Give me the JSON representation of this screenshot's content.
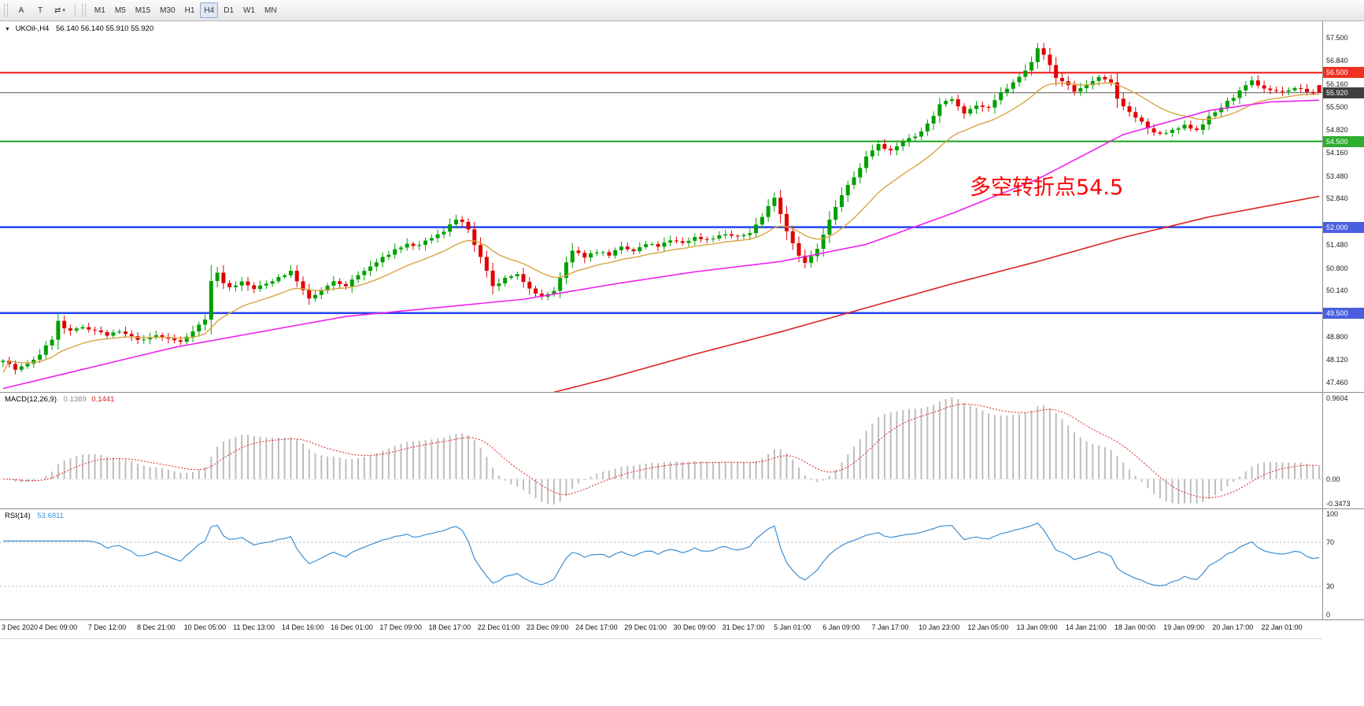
{
  "toolbar": {
    "left_buttons": [
      {
        "id": "annotate-arrow",
        "label": "A"
      },
      {
        "id": "text-label",
        "label": "T"
      }
    ],
    "cycle_button": {
      "label": "⇄",
      "caret": "▾"
    },
    "timeframes": [
      "M1",
      "M5",
      "M15",
      "M30",
      "H1",
      "H4",
      "D1",
      "W1",
      "MN"
    ],
    "selected_timeframe": "H4"
  },
  "chart": {
    "symbol_dropdown_icon": "▼",
    "title": "UKOil-,H4",
    "ohlc": "56.140 56.140 55.910 55.920",
    "annotation": {
      "text": "多空转折点54.5",
      "color": "#ff0000"
    }
  },
  "chart_data": {
    "type": "candlestick",
    "symbol": "UKOil-",
    "timeframe": "H4",
    "title": "UKOil-,H4 56.140 56.140 55.910 55.920",
    "ohlc_current": {
      "open": 56.14,
      "high": 56.14,
      "low": 55.91,
      "close": 55.92
    },
    "bars": 216,
    "price_range": [
      47.2,
      58.0
    ],
    "candle_colors": {
      "up": "#00a000",
      "down": "#e00000"
    },
    "price_path": [
      [
        0,
        48.15
      ],
      [
        2,
        47.85
      ],
      [
        4,
        48.0
      ],
      [
        6,
        48.3
      ],
      [
        8,
        48.75
      ],
      [
        9,
        49.25
      ],
      [
        10,
        49.05
      ],
      [
        11,
        48.95
      ],
      [
        13,
        49.1
      ],
      [
        15,
        49.0
      ],
      [
        17,
        48.85
      ],
      [
        19,
        48.95
      ],
      [
        21,
        48.8
      ],
      [
        23,
        48.7
      ],
      [
        25,
        48.85
      ],
      [
        27,
        48.75
      ],
      [
        29,
        48.65
      ],
      [
        31,
        49.0
      ],
      [
        33,
        49.3
      ],
      [
        34,
        50.45
      ],
      [
        35,
        50.65
      ],
      [
        36,
        50.4
      ],
      [
        37,
        50.25
      ],
      [
        39,
        50.4
      ],
      [
        41,
        50.2
      ],
      [
        43,
        50.35
      ],
      [
        45,
        50.55
      ],
      [
        47,
        50.7
      ],
      [
        48,
        50.45
      ],
      [
        49,
        50.15
      ],
      [
        50,
        49.9
      ],
      [
        52,
        50.15
      ],
      [
        54,
        50.4
      ],
      [
        56,
        50.3
      ],
      [
        58,
        50.6
      ],
      [
        60,
        50.85
      ],
      [
        62,
        51.1
      ],
      [
        64,
        51.35
      ],
      [
        66,
        51.5
      ],
      [
        68,
        51.45
      ],
      [
        70,
        51.7
      ],
      [
        72,
        51.85
      ],
      [
        73,
        52.1
      ],
      [
        74,
        52.25
      ],
      [
        75,
        52.15
      ],
      [
        76,
        51.9
      ],
      [
        77,
        51.5
      ],
      [
        78,
        51.1
      ],
      [
        79,
        50.7
      ],
      [
        80,
        50.25
      ],
      [
        82,
        50.5
      ],
      [
        84,
        50.6
      ],
      [
        86,
        50.25
      ],
      [
        88,
        49.95
      ],
      [
        90,
        50.15
      ],
      [
        91,
        50.5
      ],
      [
        92,
        50.95
      ],
      [
        93,
        51.3
      ],
      [
        95,
        51.15
      ],
      [
        97,
        51.3
      ],
      [
        99,
        51.2
      ],
      [
        101,
        51.4
      ],
      [
        103,
        51.3
      ],
      [
        105,
        51.5
      ],
      [
        107,
        51.45
      ],
      [
        109,
        51.6
      ],
      [
        111,
        51.55
      ],
      [
        113,
        51.7
      ],
      [
        115,
        51.65
      ],
      [
        118,
        51.8
      ],
      [
        120,
        51.7
      ],
      [
        122,
        51.85
      ],
      [
        124,
        52.3
      ],
      [
        125,
        52.6
      ],
      [
        126,
        52.9
      ],
      [
        127,
        52.4
      ],
      [
        128,
        51.9
      ],
      [
        130,
        51.2
      ],
      [
        131,
        50.95
      ],
      [
        133,
        51.35
      ],
      [
        135,
        52.2
      ],
      [
        137,
        52.95
      ],
      [
        139,
        53.45
      ],
      [
        141,
        54.05
      ],
      [
        143,
        54.45
      ],
      [
        145,
        54.2
      ],
      [
        147,
        54.5
      ],
      [
        149,
        54.65
      ],
      [
        151,
        55.0
      ],
      [
        153,
        55.55
      ],
      [
        155,
        55.75
      ],
      [
        157,
        55.35
      ],
      [
        159,
        55.55
      ],
      [
        161,
        55.45
      ],
      [
        163,
        55.9
      ],
      [
        165,
        56.2
      ],
      [
        167,
        56.55
      ],
      [
        168,
        56.85
      ],
      [
        169,
        57.25
      ],
      [
        170,
        57.05
      ],
      [
        171,
        56.7
      ],
      [
        172,
        56.35
      ],
      [
        174,
        56.15
      ],
      [
        175,
        55.95
      ],
      [
        177,
        56.15
      ],
      [
        179,
        56.35
      ],
      [
        181,
        56.2
      ],
      [
        182,
        55.75
      ],
      [
        184,
        55.35
      ],
      [
        186,
        55.05
      ],
      [
        187,
        54.85
      ],
      [
        189,
        54.7
      ],
      [
        191,
        54.8
      ],
      [
        193,
        54.95
      ],
      [
        195,
        54.85
      ],
      [
        197,
        55.2
      ],
      [
        199,
        55.5
      ],
      [
        201,
        55.8
      ],
      [
        203,
        56.1
      ],
      [
        204,
        56.25
      ],
      [
        206,
        56.05
      ],
      [
        208,
        55.95
      ],
      [
        210,
        56.0
      ],
      [
        212,
        56.05
      ],
      [
        213,
        55.9
      ],
      [
        215,
        55.92
      ]
    ],
    "moving_averages": {
      "fast_orange": {
        "period": 16,
        "color": "#d9a441"
      },
      "mid_magenta": {
        "color": "#ee22ee",
        "path": [
          [
            0,
            47.3
          ],
          [
            28,
            48.5
          ],
          [
            56,
            49.4
          ],
          [
            85,
            49.9
          ],
          [
            100,
            50.35
          ],
          [
            113,
            50.7
          ],
          [
            127,
            51.0
          ],
          [
            141,
            51.5
          ],
          [
            155,
            52.4
          ],
          [
            169,
            53.4
          ],
          [
            183,
            54.7
          ],
          [
            197,
            55.4
          ],
          [
            207,
            55.65
          ],
          [
            215,
            55.7
          ]
        ]
      },
      "slow_red": {
        "color": "#dd2222",
        "path": [
          [
            88,
            47.1
          ],
          [
            99,
            47.6
          ],
          [
            113,
            48.3
          ],
          [
            127,
            48.95
          ],
          [
            141,
            49.65
          ],
          [
            155,
            50.35
          ],
          [
            169,
            51.0
          ],
          [
            183,
            51.7
          ],
          [
            197,
            52.3
          ],
          [
            215,
            52.9
          ]
        ]
      }
    },
    "levels": [
      {
        "price": 56.5,
        "label": "56.500",
        "line": "#ee1111",
        "badge": "#ee3322",
        "width": 2
      },
      {
        "price": 54.5,
        "label": "54.500",
        "line": "#18a018",
        "badge": "#2fae2f",
        "width": 2
      },
      {
        "price": 52.0,
        "label": "52.000",
        "line": "#2244ee",
        "badge": "#4a5fe0",
        "width": 2.5
      },
      {
        "price": 49.5,
        "label": "49.500",
        "line": "#2244ee",
        "badge": "#4a5fe0",
        "width": 2.5
      }
    ],
    "current_price": {
      "price": 55.92,
      "label": "55.920",
      "line_color": "#555555",
      "badge_color": "#3f3f3f"
    },
    "y_ticks": [
      "57.500",
      "56.840",
      "56.160",
      "55.500",
      "54.820",
      "54.160",
      "53.480",
      "52.840",
      "51.480",
      "50.800",
      "50.140",
      "48.800",
      "48.120",
      "47.460"
    ],
    "x_labels": [
      "3 Dec 2020",
      "4 Dec 09:00",
      "7 Dec 12:00",
      "8 Dec 21:00",
      "10 Dec 05:00",
      "11 Dec 13:00",
      "14 Dec 16:00",
      "16 Dec 01:00",
      "17 Dec 09:00",
      "18 Dec 17:00",
      "22 Dec 01:00",
      "23 Dec 09:00",
      "24 Dec 17:00",
      "29 Dec 01:00",
      "30 Dec 09:00",
      "31 Dec 17:00",
      "5 Jan 01:00",
      "6 Jan 09:00",
      "7 Jan 17:00",
      "10 Jan 23:00",
      "12 Jan 05:00",
      "13 Jan 09:00",
      "14 Jan 21:00",
      "18 Jan 00:00",
      "19 Jan 09:00",
      "20 Jan 17:00",
      "22 Jan 01:00"
    ],
    "indicators": {
      "macd": {
        "name": "MACD(12,26,9)",
        "value_main": "0.1389",
        "value_signal": "0.1441",
        "fast": 12,
        "slow": 26,
        "signal": 9,
        "axis_labels": [
          "0.9604",
          "0.00",
          "-0.3473"
        ],
        "histogram_color": "#bdbdbd",
        "signal_color": "#dd2222"
      },
      "rsi": {
        "name": "RSI(14)",
        "value": "53.6811",
        "period": 14,
        "axis_labels": [
          "100",
          "70",
          "30",
          "0"
        ],
        "levels": [
          70,
          30
        ],
        "line_color": "#3c8fd4"
      }
    }
  }
}
